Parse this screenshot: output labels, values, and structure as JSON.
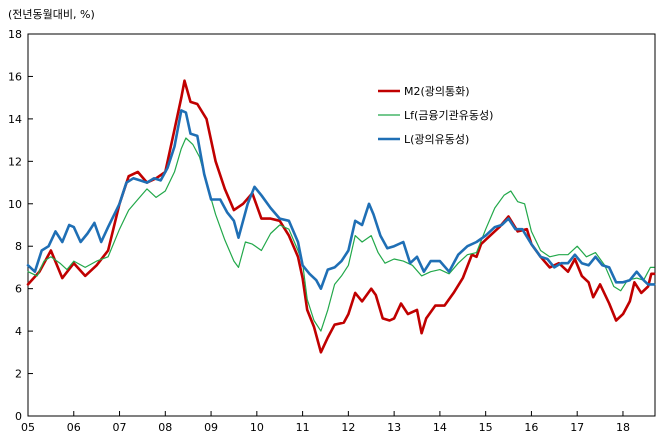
{
  "chart_data": {
    "type": "line",
    "unit_label": "(전년동월대비, %)",
    "xlabel": "",
    "ylabel": "",
    "ylim": [
      0,
      18
    ],
    "yticks": [
      0,
      2,
      4,
      6,
      8,
      10,
      12,
      14,
      16,
      18
    ],
    "xlim": [
      2005,
      2018.7
    ],
    "xticks": [
      {
        "x": 2005,
        "label": "05"
      },
      {
        "x": 2006,
        "label": "06"
      },
      {
        "x": 2007,
        "label": "07"
      },
      {
        "x": 2008,
        "label": "08"
      },
      {
        "x": 2009,
        "label": "09"
      },
      {
        "x": 2010,
        "label": "10"
      },
      {
        "x": 2011,
        "label": "11"
      },
      {
        "x": 2012,
        "label": "12"
      },
      {
        "x": 2013,
        "label": "13"
      },
      {
        "x": 2014,
        "label": "14"
      },
      {
        "x": 2015,
        "label": "15"
      },
      {
        "x": 2016,
        "label": "16"
      },
      {
        "x": 2017,
        "label": "17"
      },
      {
        "x": 2018,
        "label": "18"
      }
    ],
    "grid": false,
    "legend_position": "top-center-right",
    "series": [
      {
        "name": "M2(광의통화)",
        "color": "#c00000",
        "width": 2.6,
        "points": [
          [
            2005.0,
            6.2
          ],
          [
            2005.25,
            6.8
          ],
          [
            2005.5,
            7.8
          ],
          [
            2005.75,
            6.5
          ],
          [
            2006.0,
            7.2
          ],
          [
            2006.25,
            6.6
          ],
          [
            2006.5,
            7.1
          ],
          [
            2006.75,
            7.8
          ],
          [
            2007.0,
            10.0
          ],
          [
            2007.2,
            11.3
          ],
          [
            2007.4,
            11.5
          ],
          [
            2007.6,
            11.0
          ],
          [
            2007.8,
            11.2
          ],
          [
            2008.0,
            11.5
          ],
          [
            2008.2,
            13.5
          ],
          [
            2008.35,
            15.0
          ],
          [
            2008.42,
            15.8
          ],
          [
            2008.55,
            14.8
          ],
          [
            2008.7,
            14.7
          ],
          [
            2008.9,
            14.0
          ],
          [
            2009.1,
            12.0
          ],
          [
            2009.3,
            10.7
          ],
          [
            2009.5,
            9.7
          ],
          [
            2009.7,
            10.0
          ],
          [
            2009.9,
            10.5
          ],
          [
            2010.1,
            9.3
          ],
          [
            2010.3,
            9.3
          ],
          [
            2010.5,
            9.2
          ],
          [
            2010.7,
            8.5
          ],
          [
            2010.9,
            7.5
          ],
          [
            2011.0,
            6.5
          ],
          [
            2011.1,
            5.0
          ],
          [
            2011.25,
            4.2
          ],
          [
            2011.4,
            3.0
          ],
          [
            2011.55,
            3.7
          ],
          [
            2011.7,
            4.3
          ],
          [
            2011.9,
            4.4
          ],
          [
            2012.0,
            4.8
          ],
          [
            2012.15,
            5.8
          ],
          [
            2012.3,
            5.4
          ],
          [
            2012.5,
            6.0
          ],
          [
            2012.6,
            5.7
          ],
          [
            2012.75,
            4.6
          ],
          [
            2012.9,
            4.5
          ],
          [
            2013.0,
            4.6
          ],
          [
            2013.15,
            5.3
          ],
          [
            2013.3,
            4.8
          ],
          [
            2013.5,
            5.0
          ],
          [
            2013.6,
            3.9
          ],
          [
            2013.7,
            4.6
          ],
          [
            2013.9,
            5.2
          ],
          [
            2014.1,
            5.2
          ],
          [
            2014.3,
            5.8
          ],
          [
            2014.5,
            6.5
          ],
          [
            2014.7,
            7.6
          ],
          [
            2014.8,
            7.5
          ],
          [
            2014.9,
            8.1
          ],
          [
            2015.1,
            8.5
          ],
          [
            2015.3,
            8.9
          ],
          [
            2015.5,
            9.4
          ],
          [
            2015.7,
            8.7
          ],
          [
            2015.9,
            8.8
          ],
          [
            2016.0,
            8.1
          ],
          [
            2016.2,
            7.5
          ],
          [
            2016.4,
            7.0
          ],
          [
            2016.6,
            7.2
          ],
          [
            2016.8,
            6.8
          ],
          [
            2016.95,
            7.4
          ],
          [
            2017.1,
            6.6
          ],
          [
            2017.25,
            6.3
          ],
          [
            2017.35,
            5.6
          ],
          [
            2017.5,
            6.2
          ],
          [
            2017.7,
            5.3
          ],
          [
            2017.85,
            4.5
          ],
          [
            2018.0,
            4.8
          ],
          [
            2018.15,
            5.4
          ],
          [
            2018.25,
            6.3
          ],
          [
            2018.4,
            5.8
          ],
          [
            2018.55,
            6.1
          ],
          [
            2018.62,
            6.7
          ],
          [
            2018.68,
            6.7
          ]
        ]
      },
      {
        "name": "Lf(금융기관유동성)",
        "color": "#22a84a",
        "width": 1.2,
        "points": [
          [
            2005.0,
            6.8
          ],
          [
            2005.2,
            6.6
          ],
          [
            2005.35,
            7.3
          ],
          [
            2005.5,
            7.5
          ],
          [
            2005.7,
            7.2
          ],
          [
            2005.85,
            6.9
          ],
          [
            2006.0,
            7.3
          ],
          [
            2006.25,
            7.0
          ],
          [
            2006.5,
            7.3
          ],
          [
            2006.75,
            7.5
          ],
          [
            2007.0,
            8.8
          ],
          [
            2007.2,
            9.7
          ],
          [
            2007.4,
            10.2
          ],
          [
            2007.6,
            10.7
          ],
          [
            2007.8,
            10.3
          ],
          [
            2008.0,
            10.6
          ],
          [
            2008.2,
            11.5
          ],
          [
            2008.35,
            12.6
          ],
          [
            2008.45,
            13.1
          ],
          [
            2008.6,
            12.8
          ],
          [
            2008.75,
            12.2
          ],
          [
            2008.9,
            11.0
          ],
          [
            2009.1,
            9.5
          ],
          [
            2009.3,
            8.3
          ],
          [
            2009.5,
            7.3
          ],
          [
            2009.6,
            7.0
          ],
          [
            2009.75,
            8.2
          ],
          [
            2009.9,
            8.1
          ],
          [
            2010.1,
            7.8
          ],
          [
            2010.3,
            8.6
          ],
          [
            2010.5,
            9.0
          ],
          [
            2010.7,
            8.8
          ],
          [
            2010.9,
            7.8
          ],
          [
            2011.0,
            7.2
          ],
          [
            2011.1,
            5.5
          ],
          [
            2011.25,
            4.5
          ],
          [
            2011.4,
            4.0
          ],
          [
            2011.55,
            5.0
          ],
          [
            2011.7,
            6.2
          ],
          [
            2011.85,
            6.6
          ],
          [
            2012.0,
            7.1
          ],
          [
            2012.15,
            8.5
          ],
          [
            2012.3,
            8.2
          ],
          [
            2012.5,
            8.5
          ],
          [
            2012.65,
            7.7
          ],
          [
            2012.8,
            7.2
          ],
          [
            2013.0,
            7.4
          ],
          [
            2013.2,
            7.3
          ],
          [
            2013.4,
            7.1
          ],
          [
            2013.6,
            6.6
          ],
          [
            2013.8,
            6.8
          ],
          [
            2014.0,
            6.9
          ],
          [
            2014.2,
            6.7
          ],
          [
            2014.4,
            7.2
          ],
          [
            2014.6,
            7.6
          ],
          [
            2014.8,
            7.7
          ],
          [
            2015.0,
            8.8
          ],
          [
            2015.2,
            9.8
          ],
          [
            2015.4,
            10.4
          ],
          [
            2015.55,
            10.6
          ],
          [
            2015.7,
            10.1
          ],
          [
            2015.85,
            10.0
          ],
          [
            2016.0,
            8.7
          ],
          [
            2016.2,
            7.8
          ],
          [
            2016.4,
            7.5
          ],
          [
            2016.6,
            7.6
          ],
          [
            2016.8,
            7.6
          ],
          [
            2017.0,
            8.0
          ],
          [
            2017.2,
            7.5
          ],
          [
            2017.4,
            7.7
          ],
          [
            2017.6,
            7.1
          ],
          [
            2017.8,
            6.1
          ],
          [
            2017.95,
            5.9
          ],
          [
            2018.1,
            6.4
          ],
          [
            2018.3,
            6.5
          ],
          [
            2018.45,
            6.4
          ],
          [
            2018.6,
            7.0
          ],
          [
            2018.68,
            7.0
          ]
        ]
      },
      {
        "name": "L(광의유동성)",
        "color": "#1f6fb5",
        "width": 2.6,
        "points": [
          [
            2005.0,
            7.1
          ],
          [
            2005.15,
            6.8
          ],
          [
            2005.3,
            7.8
          ],
          [
            2005.45,
            8.0
          ],
          [
            2005.6,
            8.7
          ],
          [
            2005.75,
            8.2
          ],
          [
            2005.9,
            9.0
          ],
          [
            2006.0,
            8.9
          ],
          [
            2006.15,
            8.2
          ],
          [
            2006.3,
            8.6
          ],
          [
            2006.45,
            9.1
          ],
          [
            2006.6,
            8.2
          ],
          [
            2006.75,
            8.9
          ],
          [
            2007.0,
            10.0
          ],
          [
            2007.15,
            11.0
          ],
          [
            2007.3,
            11.2
          ],
          [
            2007.45,
            11.1
          ],
          [
            2007.6,
            11.0
          ],
          [
            2007.75,
            11.2
          ],
          [
            2007.9,
            11.1
          ],
          [
            2008.05,
            11.7
          ],
          [
            2008.2,
            12.7
          ],
          [
            2008.35,
            14.4
          ],
          [
            2008.45,
            14.3
          ],
          [
            2008.55,
            13.3
          ],
          [
            2008.7,
            13.2
          ],
          [
            2008.85,
            11.4
          ],
          [
            2009.0,
            10.2
          ],
          [
            2009.2,
            10.2
          ],
          [
            2009.35,
            9.6
          ],
          [
            2009.5,
            9.2
          ],
          [
            2009.6,
            8.4
          ],
          [
            2009.8,
            10.0
          ],
          [
            2009.95,
            10.8
          ],
          [
            2010.1,
            10.4
          ],
          [
            2010.3,
            9.8
          ],
          [
            2010.5,
            9.3
          ],
          [
            2010.7,
            9.2
          ],
          [
            2010.9,
            8.2
          ],
          [
            2011.0,
            7.1
          ],
          [
            2011.15,
            6.7
          ],
          [
            2011.3,
            6.4
          ],
          [
            2011.4,
            6.0
          ],
          [
            2011.55,
            6.9
          ],
          [
            2011.7,
            7.0
          ],
          [
            2011.85,
            7.3
          ],
          [
            2012.0,
            7.8
          ],
          [
            2012.15,
            9.2
          ],
          [
            2012.3,
            9.0
          ],
          [
            2012.45,
            10.0
          ],
          [
            2012.55,
            9.5
          ],
          [
            2012.7,
            8.5
          ],
          [
            2012.85,
            7.9
          ],
          [
            2013.0,
            8.0
          ],
          [
            2013.2,
            8.2
          ],
          [
            2013.35,
            7.2
          ],
          [
            2013.5,
            7.5
          ],
          [
            2013.65,
            6.8
          ],
          [
            2013.8,
            7.3
          ],
          [
            2014.0,
            7.3
          ],
          [
            2014.2,
            6.8
          ],
          [
            2014.4,
            7.6
          ],
          [
            2014.6,
            8.0
          ],
          [
            2014.8,
            8.2
          ],
          [
            2015.0,
            8.5
          ],
          [
            2015.2,
            8.9
          ],
          [
            2015.35,
            9.0
          ],
          [
            2015.5,
            9.3
          ],
          [
            2015.65,
            8.8
          ],
          [
            2015.8,
            8.8
          ],
          [
            2016.0,
            8.1
          ],
          [
            2016.2,
            7.5
          ],
          [
            2016.35,
            7.4
          ],
          [
            2016.5,
            7.0
          ],
          [
            2016.65,
            7.2
          ],
          [
            2016.8,
            7.2
          ],
          [
            2016.95,
            7.6
          ],
          [
            2017.1,
            7.2
          ],
          [
            2017.25,
            7.1
          ],
          [
            2017.4,
            7.5
          ],
          [
            2017.55,
            7.1
          ],
          [
            2017.7,
            7.0
          ],
          [
            2017.85,
            6.3
          ],
          [
            2018.0,
            6.3
          ],
          [
            2018.15,
            6.4
          ],
          [
            2018.3,
            6.8
          ],
          [
            2018.45,
            6.4
          ],
          [
            2018.55,
            6.2
          ],
          [
            2018.68,
            6.2
          ]
        ]
      }
    ]
  }
}
